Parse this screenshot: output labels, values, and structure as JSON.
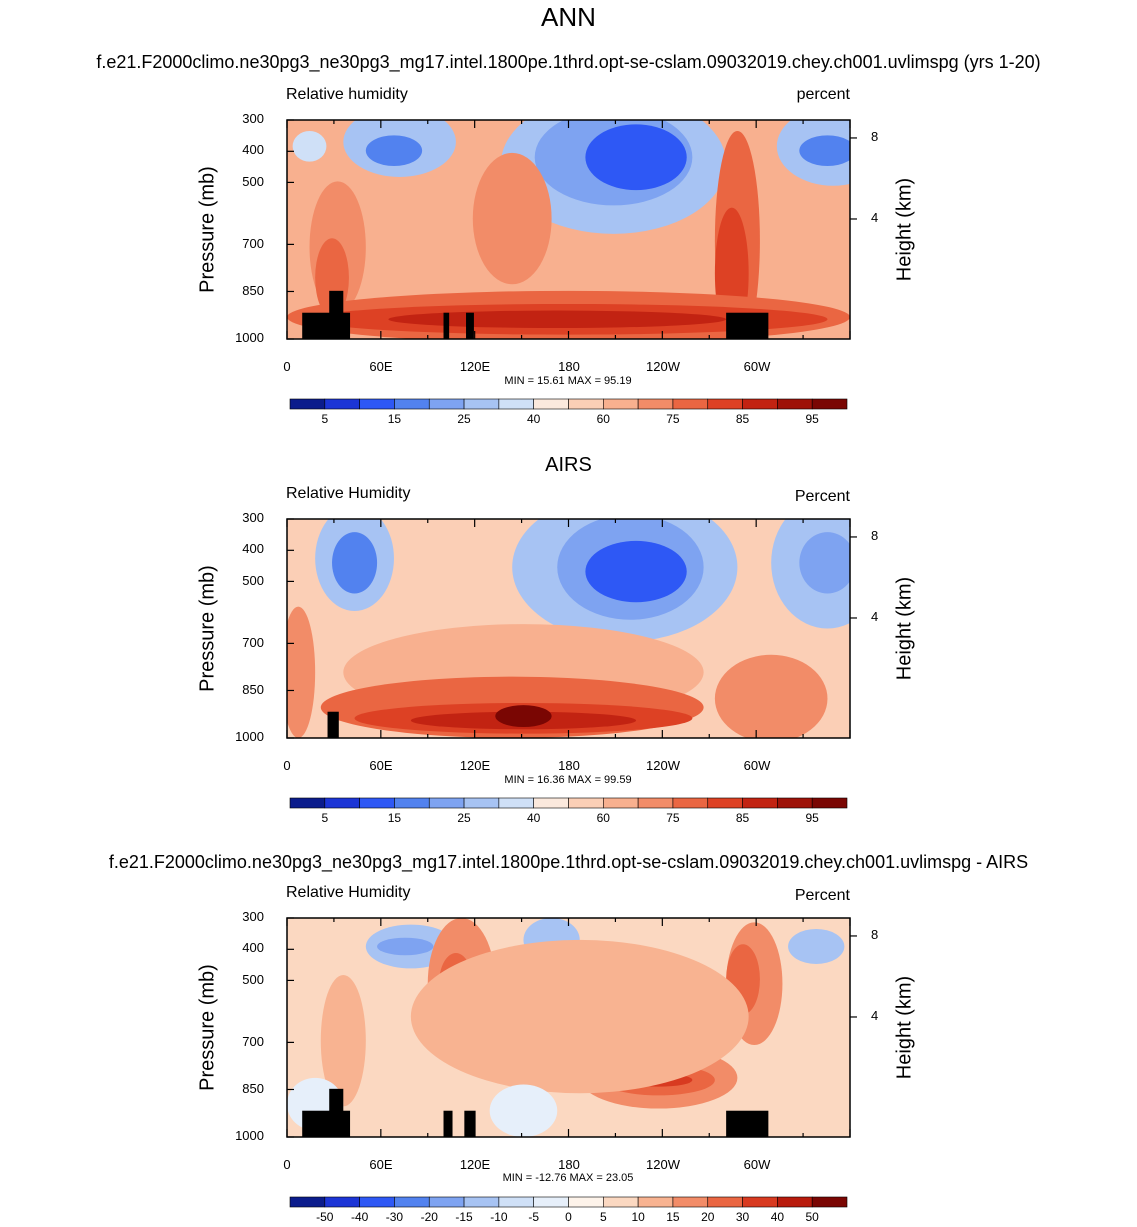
{
  "figure": {
    "main_title": "ANN",
    "colors": {
      "seq": [
        "#0b1c8c",
        "#1c35d6",
        "#2e58f5",
        "#5282ef",
        "#7ea3f1",
        "#a7c3f3",
        "#cfe0f7",
        "#fbe9dd",
        "#fbcfb6",
        "#f8b08f",
        "#f28c68",
        "#ea6642",
        "#dd4124",
        "#c22312",
        "#9e1208",
        "#7a0603"
      ],
      "diff": [
        "#0b1c8c",
        "#1c35d6",
        "#2e58f5",
        "#5282ef",
        "#7ea3f1",
        "#a7c3f3",
        "#cfe0f7",
        "#e6effa",
        "#fdf3ea",
        "#fbd8c1",
        "#f8b391",
        "#f28c68",
        "#ea6642",
        "#d83a20",
        "#b81b0c",
        "#7a0603"
      ]
    }
  },
  "chart_data": [
    {
      "type": "heatmap",
      "title": "f.e21.F2000climo.ne30pg3_ne30pg3_mg17.intel.1800pe.1thrd.opt-se-cslam.09032019.chey.ch001.uvlimspg (yrs 1-20)",
      "left_string": "Relative humidity",
      "right_string": "percent",
      "ylabel": "Pressure (mb)",
      "ylabel_right": "Height (km)",
      "y_ticks": [
        "300",
        "400",
        "500",
        "700",
        "850",
        "1000"
      ],
      "y_right_ticks": [
        "8",
        "4"
      ],
      "x_ticks": [
        "0",
        "60E",
        "120E",
        "180",
        "120W",
        "60W"
      ],
      "xlim": [
        0,
        360
      ],
      "ylim": [
        1000,
        300
      ],
      "minmax_text": "MIN = 15.61  MAX = 95.19",
      "min": 15.61,
      "max": 95.19,
      "colorbar_labels": [
        "5",
        "15",
        "25",
        "40",
        "60",
        "75",
        "85",
        "95"
      ],
      "scale": "seq"
    },
    {
      "type": "heatmap",
      "title": "AIRS",
      "left_string": "Relative Humidity",
      "right_string": "Percent",
      "ylabel": "Pressure (mb)",
      "ylabel_right": "Height (km)",
      "y_ticks": [
        "300",
        "400",
        "500",
        "700",
        "850",
        "1000"
      ],
      "y_right_ticks": [
        "8",
        "4"
      ],
      "x_ticks": [
        "0",
        "60E",
        "120E",
        "180",
        "120W",
        "60W"
      ],
      "xlim": [
        0,
        360
      ],
      "ylim": [
        1000,
        300
      ],
      "minmax_text": "MIN = 16.36  MAX = 99.59",
      "min": 16.36,
      "max": 99.59,
      "colorbar_labels": [
        "5",
        "15",
        "25",
        "40",
        "60",
        "75",
        "85",
        "95"
      ],
      "scale": "seq"
    },
    {
      "type": "heatmap",
      "title": "f.e21.F2000climo.ne30pg3_ne30pg3_mg17.intel.1800pe.1thrd.opt-se-cslam.09032019.chey.ch001.uvlimspg - AIRS",
      "left_string": "Relative Humidity",
      "right_string": "Percent",
      "ylabel": "Pressure (mb)",
      "ylabel_right": "Height (km)",
      "y_ticks": [
        "300",
        "400",
        "500",
        "700",
        "850",
        "1000"
      ],
      "y_right_ticks": [
        "8",
        "4"
      ],
      "x_ticks": [
        "0",
        "60E",
        "120E",
        "180",
        "120W",
        "60W"
      ],
      "xlim": [
        0,
        360
      ],
      "ylim": [
        1000,
        300
      ],
      "minmax_text": "MIN = -12.76  MAX = 23.05",
      "min": -12.76,
      "max": 23.05,
      "colorbar_labels": [
        "-50",
        "-40",
        "-30",
        "-20",
        "-15",
        "-10",
        "-5",
        "0",
        "5",
        "10",
        "15",
        "20",
        "30",
        "40",
        "50"
      ],
      "scale": "diff"
    }
  ]
}
